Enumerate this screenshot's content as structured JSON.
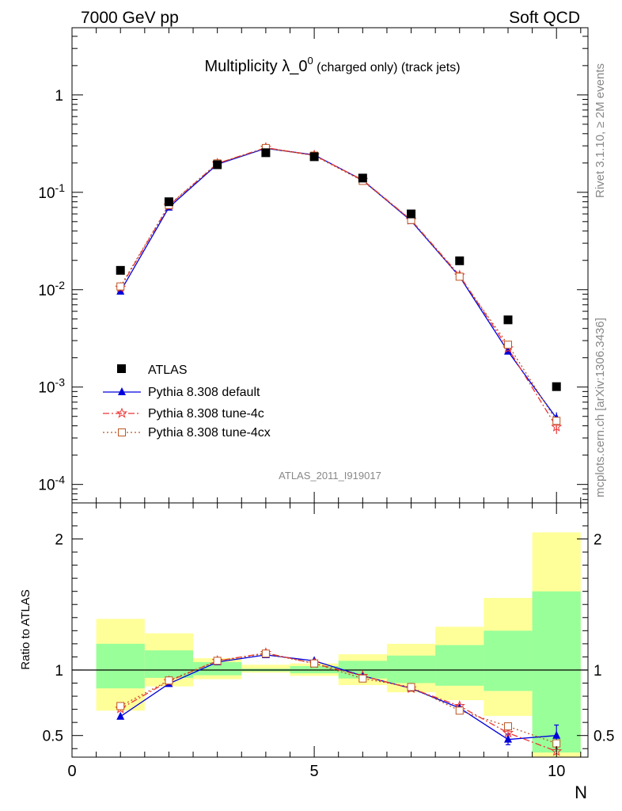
{
  "header": {
    "left": "7000 GeV pp",
    "right": "Soft QCD"
  },
  "title": {
    "main": "Multiplicity λ_0",
    "sup": "0",
    "sub": " (charged only) (track jets)"
  },
  "side_text": {
    "rivet": "Rivet 3.1.10, ≥ 2M events",
    "mcplots": "mcplots.cern.ch [arXiv:1306.3436]"
  },
  "analysis_id": "ATLAS_2011_I919017",
  "colors": {
    "atlas": "#000000",
    "default": "#0000dd",
    "tune4c": "#ee3333",
    "tune4cx": "#bb5522",
    "band_inner": "#99ff99",
    "band_outer": "#ffff99"
  },
  "chart_data": [
    {
      "type": "scatter",
      "panel": "main",
      "yscale": "log",
      "xlim": [
        0,
        10.65
      ],
      "ylim": [
        6.46e-05,
        4.9
      ],
      "yticks": [
        "10^-4",
        "10^-3",
        "10^-2",
        "10^-1",
        "1"
      ],
      "legend_position": "bottom-left",
      "x": [
        1,
        2,
        3,
        4,
        5,
        6,
        7,
        8,
        9,
        10
      ],
      "series": [
        {
          "name": "ATLAS",
          "marker": "square",
          "values": [
            0.0158,
            0.08,
            0.192,
            0.255,
            0.232,
            0.14,
            0.06,
            0.0198,
            0.0049,
            0.00101
          ]
        },
        {
          "name": "Pythia 8.308 default",
          "marker": "triangle",
          "line": "solid",
          "values": [
            0.0096,
            0.07,
            0.194,
            0.283,
            0.242,
            0.133,
            0.051,
            0.0136,
            0.00232,
            0.00048
          ],
          "errors": [
            null,
            null,
            null,
            null,
            null,
            null,
            null,
            null,
            null,
            7e-05
          ]
        },
        {
          "name": "Pythia 8.308 tune-4c",
          "marker": "star",
          "line": "dashdot",
          "values": [
            0.0105,
            0.073,
            0.198,
            0.287,
            0.24,
            0.134,
            0.052,
            0.014,
            0.0025,
            0.00039
          ],
          "errors": [
            null,
            null,
            null,
            null,
            null,
            null,
            null,
            null,
            null,
            6e-05
          ]
        },
        {
          "name": "Pythia 8.308 tune-4cx",
          "marker": "open-square",
          "line": "dotted",
          "values": [
            0.0108,
            0.074,
            0.198,
            0.285,
            0.238,
            0.131,
            0.052,
            0.0136,
            0.00272,
            0.00045
          ]
        }
      ]
    },
    {
      "type": "scatter",
      "panel": "ratio",
      "ylabel": "Ratio to ATLAS",
      "xlabel": "N",
      "xlim": [
        0,
        10.65
      ],
      "ylim": [
        0.335,
        2.275
      ],
      "yticks": [
        0.5,
        1,
        2
      ],
      "xticks": [
        0,
        5,
        10
      ],
      "x": [
        1,
        2,
        3,
        4,
        5,
        6,
        7,
        8,
        9,
        10
      ],
      "bands": {
        "outer": [
          [
            0.69,
            1.39
          ],
          [
            0.875,
            1.28
          ],
          [
            0.93,
            1.09
          ],
          [
            0.98,
            1.04
          ],
          [
            0.955,
            1.05
          ],
          [
            0.885,
            1.12
          ],
          [
            0.83,
            1.2
          ],
          [
            0.77,
            1.33
          ],
          [
            0.65,
            1.55
          ],
          [
            0.335,
            2.05
          ]
        ],
        "inner": [
          [
            0.86,
            1.2
          ],
          [
            0.94,
            1.15
          ],
          [
            0.96,
            1.06
          ],
          [
            0.99,
            1.01
          ],
          [
            0.975,
            1.03
          ],
          [
            0.935,
            1.07
          ],
          [
            0.9,
            1.11
          ],
          [
            0.88,
            1.19
          ],
          [
            0.84,
            1.3
          ],
          [
            0.37,
            1.6
          ]
        ]
      },
      "series": [
        {
          "name": "Pythia 8.308 default",
          "values": [
            0.645,
            0.895,
            1.06,
            1.115,
            1.07,
            0.955,
            0.86,
            0.71,
            0.47,
            0.5
          ],
          "errors": [
            null,
            null,
            null,
            null,
            null,
            null,
            null,
            null,
            0.04,
            0.08
          ]
        },
        {
          "name": "Pythia 8.308 tune-4c",
          "values": [
            0.705,
            0.915,
            1.07,
            1.13,
            1.05,
            0.955,
            0.86,
            0.725,
            0.52,
            0.38
          ],
          "errors": [
            null,
            null,
            null,
            null,
            null,
            null,
            null,
            null,
            0.05,
            null
          ]
        },
        {
          "name": "Pythia 8.308 tune-4cx",
          "values": [
            0.725,
            0.92,
            1.07,
            1.125,
            1.05,
            0.935,
            0.87,
            0.69,
            0.57,
            0.44
          ]
        }
      ]
    }
  ]
}
